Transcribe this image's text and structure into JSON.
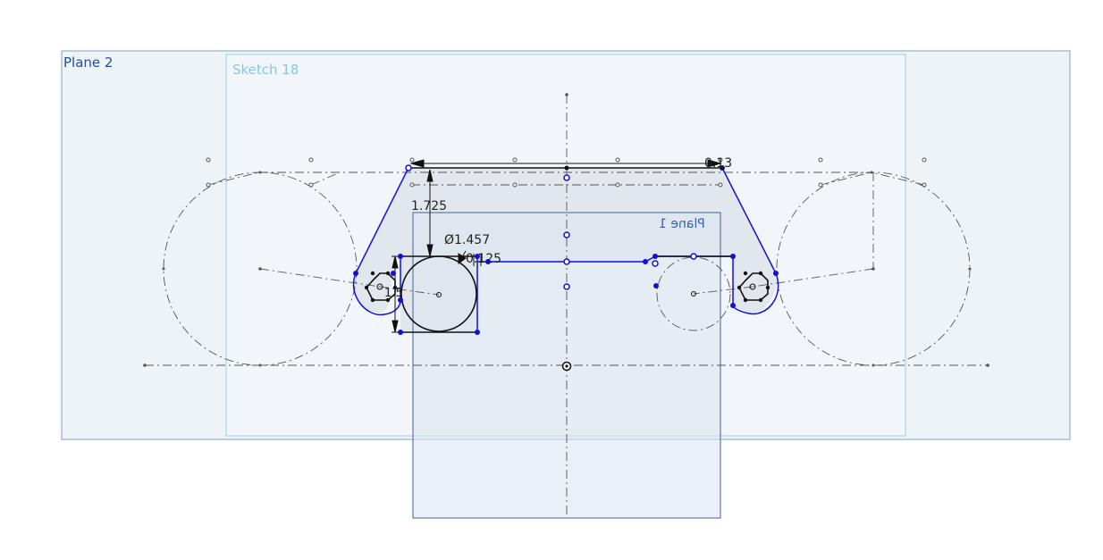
{
  "planes": {
    "plane2": "Plane 2",
    "sketch": "Sketch 18",
    "plane1": "Plane 1"
  },
  "dimensions": {
    "height_1725": "1.725",
    "diameter_1457": "Ø1.457",
    "offset_0125": "0.125",
    "height_15": "1.5",
    "top_013": "0.13"
  },
  "colors": {
    "plane_fill": "#eef3f9",
    "plane_border": "#9dbbd8",
    "sketch_border": "#a8d8ee",
    "sketch_line": "#1414d4",
    "construction_line": "#555555",
    "dimension_color": "#111111"
  }
}
